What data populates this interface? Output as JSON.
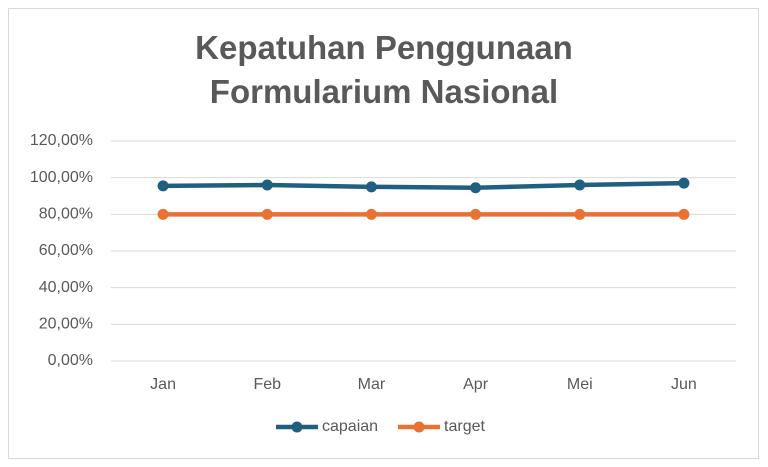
{
  "chart_data": {
    "type": "line",
    "title": "Kepatuhan Penggunaan Formularium Nasional",
    "categories": [
      "Jan",
      "Feb",
      "Mar",
      "Apr",
      "Mei",
      "Jun"
    ],
    "series": [
      {
        "name": "capaian",
        "color": "#215f80",
        "values": [
          95.5,
          96,
          95,
          94.5,
          96,
          97
        ]
      },
      {
        "name": "target",
        "color": "#e97132",
        "values": [
          80,
          80,
          80,
          80,
          80,
          80
        ]
      }
    ],
    "ylim": [
      0,
      120
    ],
    "yticks": [
      {
        "value": 0,
        "label": "0,00%"
      },
      {
        "value": 20,
        "label": "20,00%"
      },
      {
        "value": 40,
        "label": "40,00%"
      },
      {
        "value": 60,
        "label": "60,00%"
      },
      {
        "value": 80,
        "label": "80,00%"
      },
      {
        "value": 100,
        "label": "100,00%"
      },
      {
        "value": 120,
        "label": "120,00%"
      }
    ],
    "grid": true,
    "legend": "bottom"
  }
}
